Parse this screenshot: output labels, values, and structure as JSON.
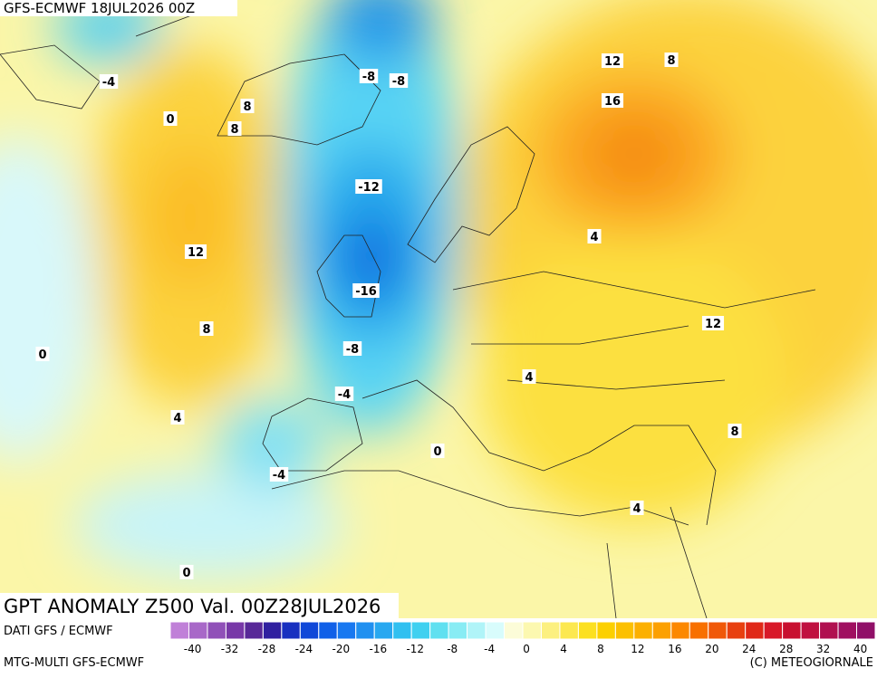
{
  "header": "GFS-ECMWF 18JUL2026 00Z",
  "title": "GPT ANOMALY Z500 Val. 00Z28JUL2026",
  "footer": {
    "source": "DATI GFS / ECMWF",
    "model": "MTG-MULTI GFS-ECMWF",
    "credit": "(C) METEOGIORNALE"
  },
  "contour_labels": [
    -4,
    0,
    8,
    8,
    -8,
    -8,
    12,
    8,
    16,
    -12,
    12,
    4,
    -16,
    8,
    0,
    12,
    -8,
    4,
    -4,
    8,
    4,
    0,
    -4,
    4,
    0
  ],
  "colorbar": {
    "labels": [
      -40,
      -32,
      -28,
      -24,
      -20,
      -16,
      -12,
      -8,
      -4,
      0,
      4,
      8,
      12,
      16,
      20,
      24,
      28,
      32,
      40
    ],
    "colors": [
      "#c080d8",
      "#a868c8",
      "#9050b8",
      "#7838a8",
      "#582898",
      "#3020a0",
      "#1830c0",
      "#1048d8",
      "#1060e8",
      "#1878f0",
      "#2090f0",
      "#28a8f0",
      "#30c0f0",
      "#40d0f0",
      "#60e0f0",
      "#88ecf4",
      "#b0f4f8",
      "#d8fcfc",
      "#fcfcd8",
      "#fcf8b0",
      "#fcf080",
      "#fce850",
      "#fce020",
      "#fcd000",
      "#fcc000",
      "#fcb000",
      "#fca000",
      "#fc8800",
      "#f87000",
      "#f05808",
      "#e84010",
      "#e02818",
      "#d81828",
      "#c81030",
      "#c01040",
      "#b01050",
      "#a01060",
      "#901068"
    ]
  }
}
